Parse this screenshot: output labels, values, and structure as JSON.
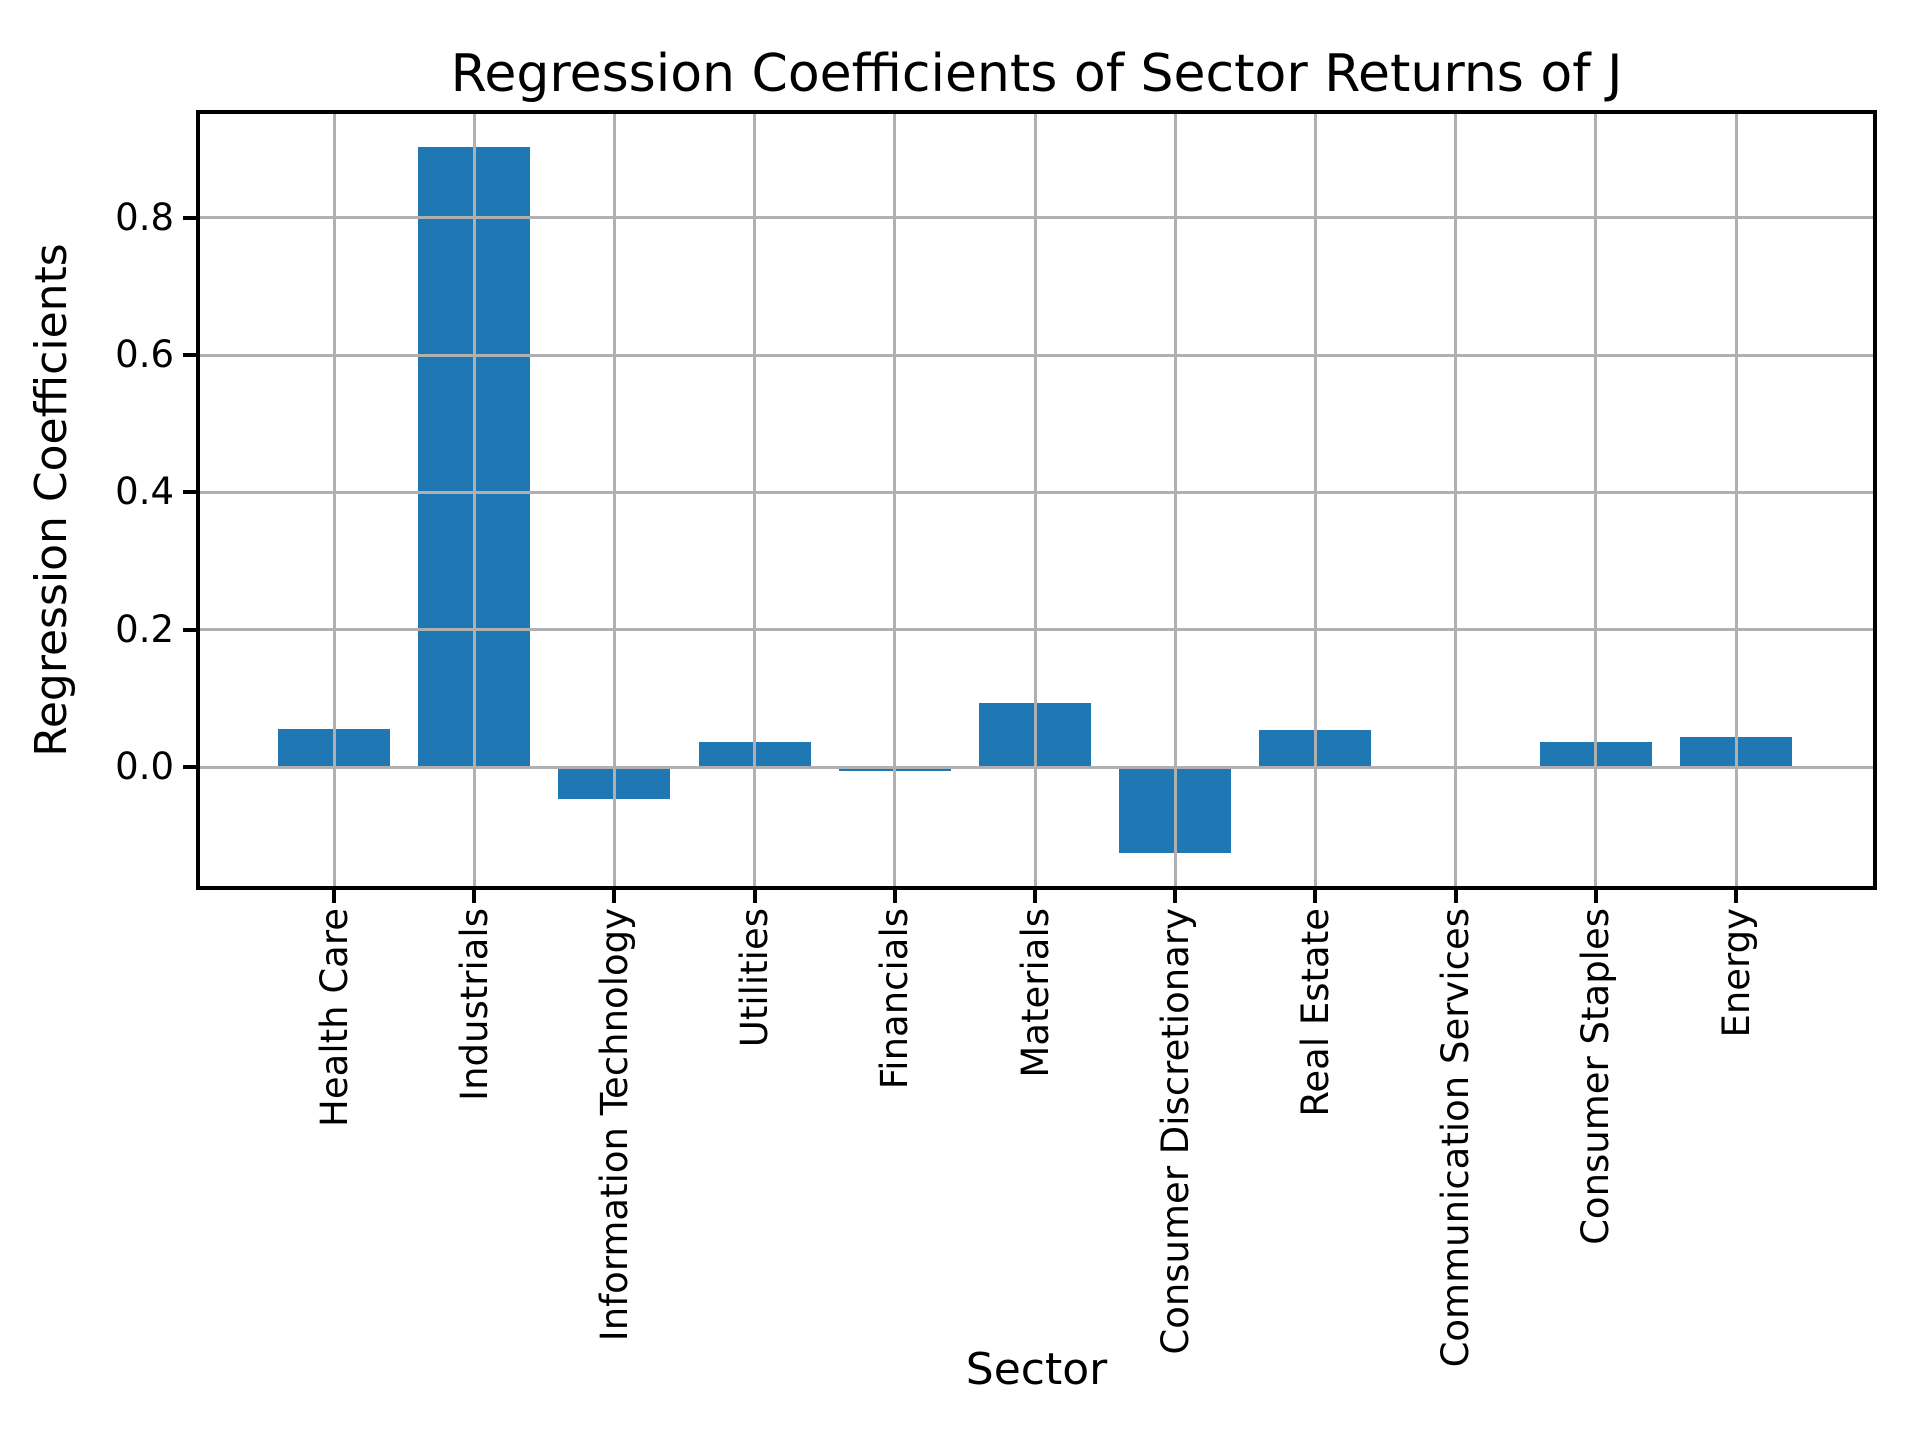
{
  "chart_data": {
    "type": "bar",
    "title": "Regression Coefficients of Sector Returns of J",
    "xlabel": "Sector",
    "ylabel": "Regression Coefficients",
    "categories": [
      "Health Care",
      "Industrials",
      "Information Technology",
      "Utilities",
      "Financials",
      "Materials",
      "Consumer Discretionary",
      "Real Estate",
      "Communication Services",
      "Consumer Staples",
      "Energy"
    ],
    "values": [
      0.055,
      0.903,
      -0.046,
      0.036,
      -0.005,
      0.094,
      -0.125,
      0.054,
      0.001,
      0.036,
      0.044
    ],
    "ylim": [
      -0.173,
      0.951
    ],
    "yticks": [
      0.0,
      0.2,
      0.4,
      0.6,
      0.8
    ],
    "ytick_labels": [
      "0.0",
      "0.2",
      "0.4",
      "0.6",
      "0.8"
    ],
    "xtick_rotation": 90,
    "grid": true,
    "grid_over_bars": true,
    "legend": "none",
    "colors": {
      "bar": "#1f77b4",
      "grid": "#b0b0b0",
      "spine": "#000000",
      "text": "#000000",
      "background": "#ffffff"
    }
  }
}
